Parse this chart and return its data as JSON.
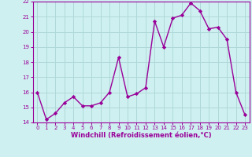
{
  "x": [
    0,
    1,
    2,
    3,
    4,
    5,
    6,
    7,
    8,
    9,
    10,
    11,
    12,
    13,
    14,
    15,
    16,
    17,
    18,
    19,
    20,
    21,
    22,
    23
  ],
  "y": [
    16.0,
    14.2,
    14.6,
    15.3,
    15.7,
    15.1,
    15.1,
    15.3,
    16.0,
    18.3,
    15.7,
    15.9,
    16.3,
    20.7,
    19.0,
    20.9,
    21.1,
    21.9,
    21.4,
    20.2,
    20.3,
    19.5,
    16.0,
    14.5
  ],
  "line_color": "#990099",
  "marker": "D",
  "marker_size": 2.2,
  "linewidth": 1.0,
  "xlabel": "Windchill (Refroidissement éolien,°C)",
  "xlim": [
    -0.5,
    23.5
  ],
  "ylim": [
    14,
    22
  ],
  "yticks": [
    14,
    15,
    16,
    17,
    18,
    19,
    20,
    21,
    22
  ],
  "xticks": [
    0,
    1,
    2,
    3,
    4,
    5,
    6,
    7,
    8,
    9,
    10,
    11,
    12,
    13,
    14,
    15,
    16,
    17,
    18,
    19,
    20,
    21,
    22,
    23
  ],
  "background_color": "#cff0f0",
  "grid_color": "#b0d8d8",
  "xlabel_color": "#990099",
  "tick_color": "#990099",
  "spine_color": "#990099"
}
